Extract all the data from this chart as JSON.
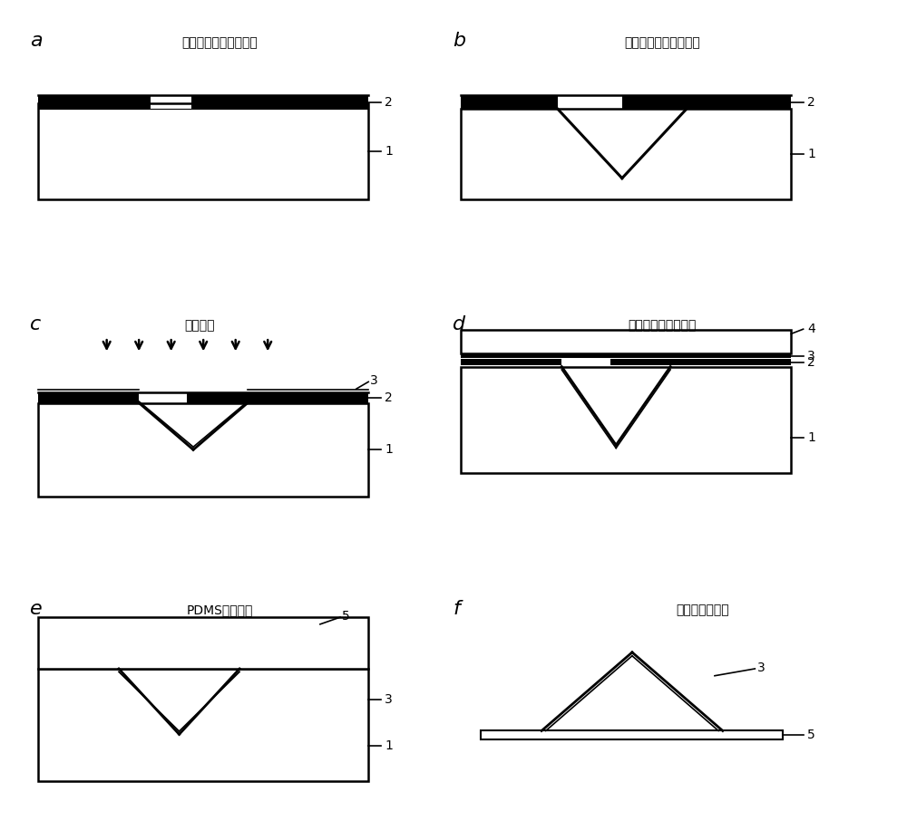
{
  "panel_titles": {
    "a": "常规曝光得到图形阵列",
    "b": "碱溶液湿法刻蚀氧化硅",
    "c": "金属沉积",
    "d": "胶带揭去表面金属层",
    "e": "PDMS浇筑成型",
    "f": "碱溶液腐蚀脱模"
  },
  "bg_color": "#ffffff",
  "line_color": "#000000"
}
